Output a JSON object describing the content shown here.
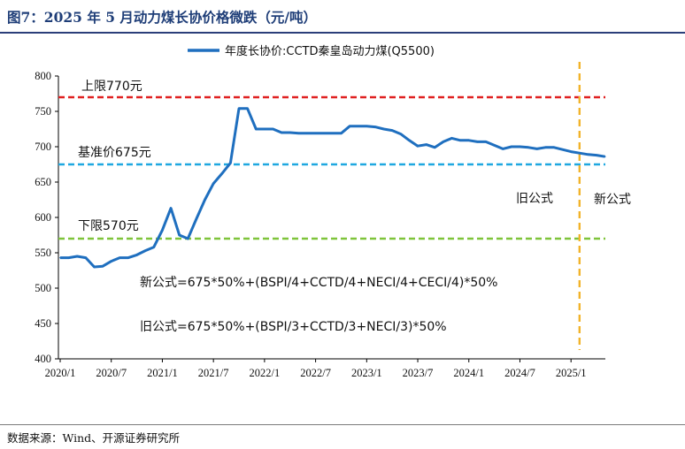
{
  "title": "图7：2025 年 5 月动力煤长协价格微跌（元/吨）",
  "source": "数据来源：Wind、开源证券研究所",
  "chart_data": {
    "type": "line",
    "ylim": [
      400,
      800
    ],
    "yticks": [
      400,
      450,
      500,
      550,
      600,
      650,
      700,
      750,
      800
    ],
    "xticks": [
      "2020/1",
      "2020/7",
      "2021/1",
      "2021/7",
      "2022/1",
      "2022/7",
      "2023/1",
      "2023/7",
      "2024/1",
      "2024/7",
      "2025/1"
    ],
    "grid": false,
    "legend_position": "top",
    "series": [
      {
        "name": "年度长协价:CCTD秦皇岛动力煤(Q5500)",
        "color": "#1f6fbf",
        "x": [
          "2020/1",
          "2020/2",
          "2020/3",
          "2020/4",
          "2020/5",
          "2020/6",
          "2020/7",
          "2020/8",
          "2020/9",
          "2020/10",
          "2020/11",
          "2020/12",
          "2021/1",
          "2021/2",
          "2021/3",
          "2021/4",
          "2021/5",
          "2021/6",
          "2021/7",
          "2021/8",
          "2021/9",
          "2021/10",
          "2021/11",
          "2021/12",
          "2022/1",
          "2022/2",
          "2022/3",
          "2022/4",
          "2022/5",
          "2022/6",
          "2022/7",
          "2022/8",
          "2022/9",
          "2022/10",
          "2022/11",
          "2022/12",
          "2023/1",
          "2023/2",
          "2023/3",
          "2023/4",
          "2023/5",
          "2023/6",
          "2023/7",
          "2023/8",
          "2023/9",
          "2023/10",
          "2023/11",
          "2023/12",
          "2024/1",
          "2024/2",
          "2024/3",
          "2024/4",
          "2024/5",
          "2024/6",
          "2024/7",
          "2024/8",
          "2024/9",
          "2024/10",
          "2024/11",
          "2024/12",
          "2025/1",
          "2025/2",
          "2025/3",
          "2025/4",
          "2025/5"
        ],
        "values": [
          543,
          543,
          545,
          543,
          530,
          531,
          538,
          543,
          543,
          547,
          553,
          558,
          582,
          613,
          575,
          570,
          598,
          625,
          648,
          662,
          677,
          754,
          754,
          725,
          725,
          725,
          720,
          720,
          719,
          719,
          719,
          719,
          719,
          719,
          729,
          729,
          729,
          728,
          725,
          723,
          718,
          709,
          701,
          703,
          699,
          707,
          712,
          709,
          709,
          707,
          707,
          702,
          697,
          700,
          700,
          699,
          697,
          699,
          699,
          696,
          693,
          691,
          689,
          688,
          686
        ]
      }
    ],
    "reference_lines": [
      {
        "label": "上限770元",
        "value": 770,
        "color": "#e02020"
      },
      {
        "label": "基准价675元",
        "value": 675,
        "color": "#1fa8e0"
      },
      {
        "label": "下限570元",
        "value": 570,
        "color": "#7fc43a"
      }
    ],
    "vertical_marker": {
      "at": "2025/2",
      "color": "#f2b32a"
    },
    "annotations": {
      "old_label": "旧公式",
      "new_label": "新公式",
      "new_formula": "新公式=675*50%+(BSPI/4+CCTD/4+NECI/4+CECI/4)*50%",
      "old_formula": "旧公式=675*50%+(BSPI/3+CCTD/3+NECI/3)*50%"
    }
  }
}
